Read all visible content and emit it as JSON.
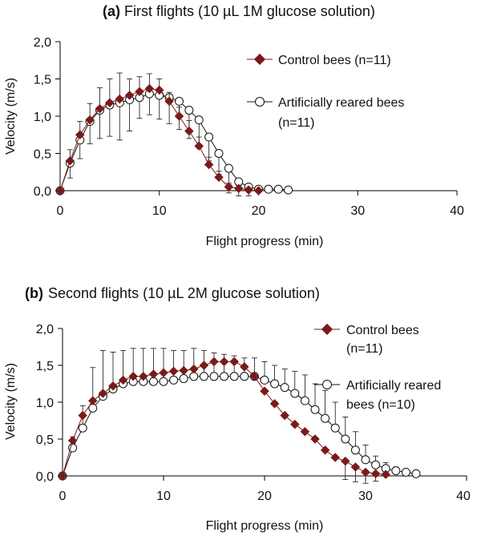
{
  "chart_data": [
    {
      "type": "line",
      "panel": "(a)",
      "title": "First flights (10 µL 1M glucose solution)",
      "xlabel": "Flight progress (min)",
      "ylabel": "Velocity (m/s)",
      "xlim": [
        0,
        40
      ],
      "ylim": [
        0,
        2
      ],
      "xticks": [
        0,
        10,
        20,
        30,
        40
      ],
      "xtick_labels": [
        "0",
        "10",
        "20",
        "30",
        "40"
      ],
      "yticks": [
        0,
        0.5,
        1,
        1.5,
        2
      ],
      "ytick_labels": [
        "0,0",
        "0,5",
        "1,0",
        "1,5",
        "2,0"
      ],
      "legend": {
        "position": "top-right",
        "entries": [
          {
            "label_lines": [
              "Control bees (n=11)"
            ]
          },
          {
            "label_lines": [
              "Artificially reared bees",
              "(n=11)"
            ]
          }
        ]
      },
      "series": [
        {
          "name": "Control bees (n=11)",
          "marker": "diamond",
          "color": "#7b1a1a",
          "x": [
            0,
            1,
            2,
            3,
            4,
            5,
            6,
            7,
            8,
            9,
            10,
            11,
            12,
            13,
            14,
            15,
            16,
            17,
            18,
            19,
            20
          ],
          "y": [
            0,
            0.4,
            0.75,
            0.95,
            1.1,
            1.18,
            1.23,
            1.28,
            1.33,
            1.37,
            1.35,
            1.2,
            1.0,
            0.8,
            0.6,
            0.35,
            0.18,
            0.05,
            0.03,
            0.01,
            0.0
          ],
          "err_up": [
            0,
            0.15,
            0.18,
            0.22,
            0.28,
            0.32,
            0.35,
            0.22,
            0.2,
            0.2,
            0.15,
            0.12,
            0.12,
            0.14,
            0.12,
            0.1,
            0.08,
            0.05,
            0.04,
            0.03,
            0
          ],
          "err_down": [
            0,
            0,
            0,
            0,
            0,
            0,
            0,
            0,
            0,
            0,
            0,
            0,
            0,
            0,
            0,
            0,
            0,
            0.08,
            0.1,
            0.08,
            0
          ]
        },
        {
          "name": "Artificially reared bees (n=11)",
          "marker": "circle",
          "color": "#111111",
          "x": [
            0,
            1,
            2,
            3,
            4,
            5,
            6,
            7,
            8,
            9,
            10,
            11,
            12,
            13,
            14,
            15,
            16,
            17,
            18,
            19,
            20,
            21,
            22,
            23
          ],
          "y": [
            0,
            0.37,
            0.68,
            0.93,
            1.08,
            1.15,
            1.18,
            1.22,
            1.25,
            1.3,
            1.28,
            1.25,
            1.2,
            1.08,
            0.95,
            0.72,
            0.5,
            0.3,
            0.12,
            0.05,
            0.02,
            0.02,
            0.02,
            0.01
          ],
          "err_up": [
            0,
            0,
            0,
            0,
            0,
            0,
            0,
            0,
            0,
            0,
            0,
            0,
            0,
            0,
            0,
            0,
            0,
            0,
            0,
            0,
            0,
            0,
            0,
            0
          ],
          "err_down": [
            0,
            0.2,
            0.25,
            0.3,
            0.38,
            0.42,
            0.5,
            0.42,
            0.28,
            0.28,
            0.32,
            0.35,
            0.38,
            0.38,
            0.38,
            0.32,
            0.28,
            0.22,
            0.1,
            0.05,
            0.03,
            0.03,
            0.03,
            0
          ]
        }
      ]
    },
    {
      "type": "line",
      "panel": "(b)",
      "title": "Second flights (10 µL 2M glucose solution)",
      "xlabel": "Flight progress (min)",
      "ylabel": "Velocity (m/s)",
      "xlim": [
        0,
        40
      ],
      "ylim": [
        0,
        2
      ],
      "xticks": [
        0,
        10,
        20,
        30,
        40
      ],
      "xtick_labels": [
        "0",
        "10",
        "20",
        "30",
        "40"
      ],
      "yticks": [
        0,
        0.5,
        1,
        1.5,
        2
      ],
      "ytick_labels": [
        "0,0",
        "0,5",
        "1,0",
        "1,5",
        "2,0"
      ],
      "legend": {
        "position": "top-right",
        "entries": [
          {
            "label_lines": [
              "Control bees",
              "(n=11)"
            ]
          },
          {
            "label_lines": [
              "Artificially reared",
              "bees (n=10)"
            ]
          }
        ]
      },
      "series": [
        {
          "name": "Control bees (n=11)",
          "marker": "diamond",
          "color": "#7b1a1a",
          "x": [
            0,
            1,
            2,
            3,
            4,
            5,
            6,
            7,
            8,
            9,
            10,
            11,
            12,
            13,
            14,
            15,
            16,
            17,
            18,
            19,
            20,
            21,
            22,
            23,
            24,
            25,
            26,
            27,
            28,
            29,
            30,
            31,
            32
          ],
          "y": [
            0,
            0.48,
            0.82,
            1.02,
            1.12,
            1.22,
            1.3,
            1.35,
            1.35,
            1.38,
            1.4,
            1.42,
            1.43,
            1.45,
            1.5,
            1.55,
            1.55,
            1.55,
            1.48,
            1.35,
            1.15,
            0.98,
            0.82,
            0.7,
            0.6,
            0.5,
            0.35,
            0.25,
            0.2,
            0.12,
            0.05,
            0.03,
            0.02
          ],
          "err_up": [
            0,
            0,
            0,
            0,
            0,
            0,
            0,
            0,
            0,
            0,
            0,
            0,
            0,
            0,
            0,
            0,
            0,
            0,
            0,
            0,
            0,
            0,
            0,
            0,
            0,
            0,
            0,
            0,
            0,
            0,
            0,
            0,
            0
          ],
          "err_down": [
            0,
            0,
            0,
            0,
            0,
            0,
            0,
            0,
            0,
            0,
            0,
            0,
            0,
            0,
            0,
            0,
            0,
            0,
            0,
            0,
            0,
            0,
            0,
            0,
            0,
            0,
            0,
            0,
            0.25,
            0.2,
            0.15,
            0.1,
            0
          ]
        },
        {
          "name": "Artificially reared bees (n=10)",
          "marker": "circle",
          "color": "#111111",
          "x": [
            0,
            1,
            2,
            3,
            4,
            5,
            6,
            7,
            8,
            9,
            10,
            11,
            12,
            13,
            14,
            15,
            16,
            17,
            18,
            19,
            20,
            21,
            22,
            23,
            24,
            25,
            26,
            27,
            28,
            29,
            30,
            31,
            32,
            33,
            34,
            35
          ],
          "y": [
            0,
            0.38,
            0.65,
            0.92,
            1.08,
            1.18,
            1.25,
            1.28,
            1.28,
            1.28,
            1.28,
            1.3,
            1.32,
            1.35,
            1.35,
            1.35,
            1.35,
            1.35,
            1.35,
            1.35,
            1.3,
            1.25,
            1.2,
            1.12,
            1.02,
            0.9,
            0.78,
            0.65,
            0.5,
            0.35,
            0.22,
            0.15,
            0.1,
            0.07,
            0.05,
            0.03
          ],
          "err_up": [
            0,
            0.15,
            0.3,
            0.55,
            0.62,
            0.5,
            0.45,
            0.45,
            0.45,
            0.45,
            0.45,
            0.4,
            0.38,
            0.38,
            0.35,
            0.32,
            0.3,
            0.28,
            0.25,
            0.25,
            0.25,
            0.25,
            0.25,
            0.3,
            0.35,
            0.35,
            0.38,
            0.35,
            0.3,
            0.25,
            0.2,
            0.12,
            0.08,
            0.05,
            0.03,
            0
          ],
          "err_down": [
            0,
            0,
            0,
            0,
            0,
            0,
            0,
            0,
            0,
            0,
            0,
            0,
            0,
            0,
            0,
            0,
            0,
            0,
            0,
            0,
            0,
            0,
            0,
            0,
            0,
            0,
            0,
            0,
            0,
            0,
            0,
            0,
            0,
            0,
            0,
            0
          ]
        }
      ]
    }
  ]
}
